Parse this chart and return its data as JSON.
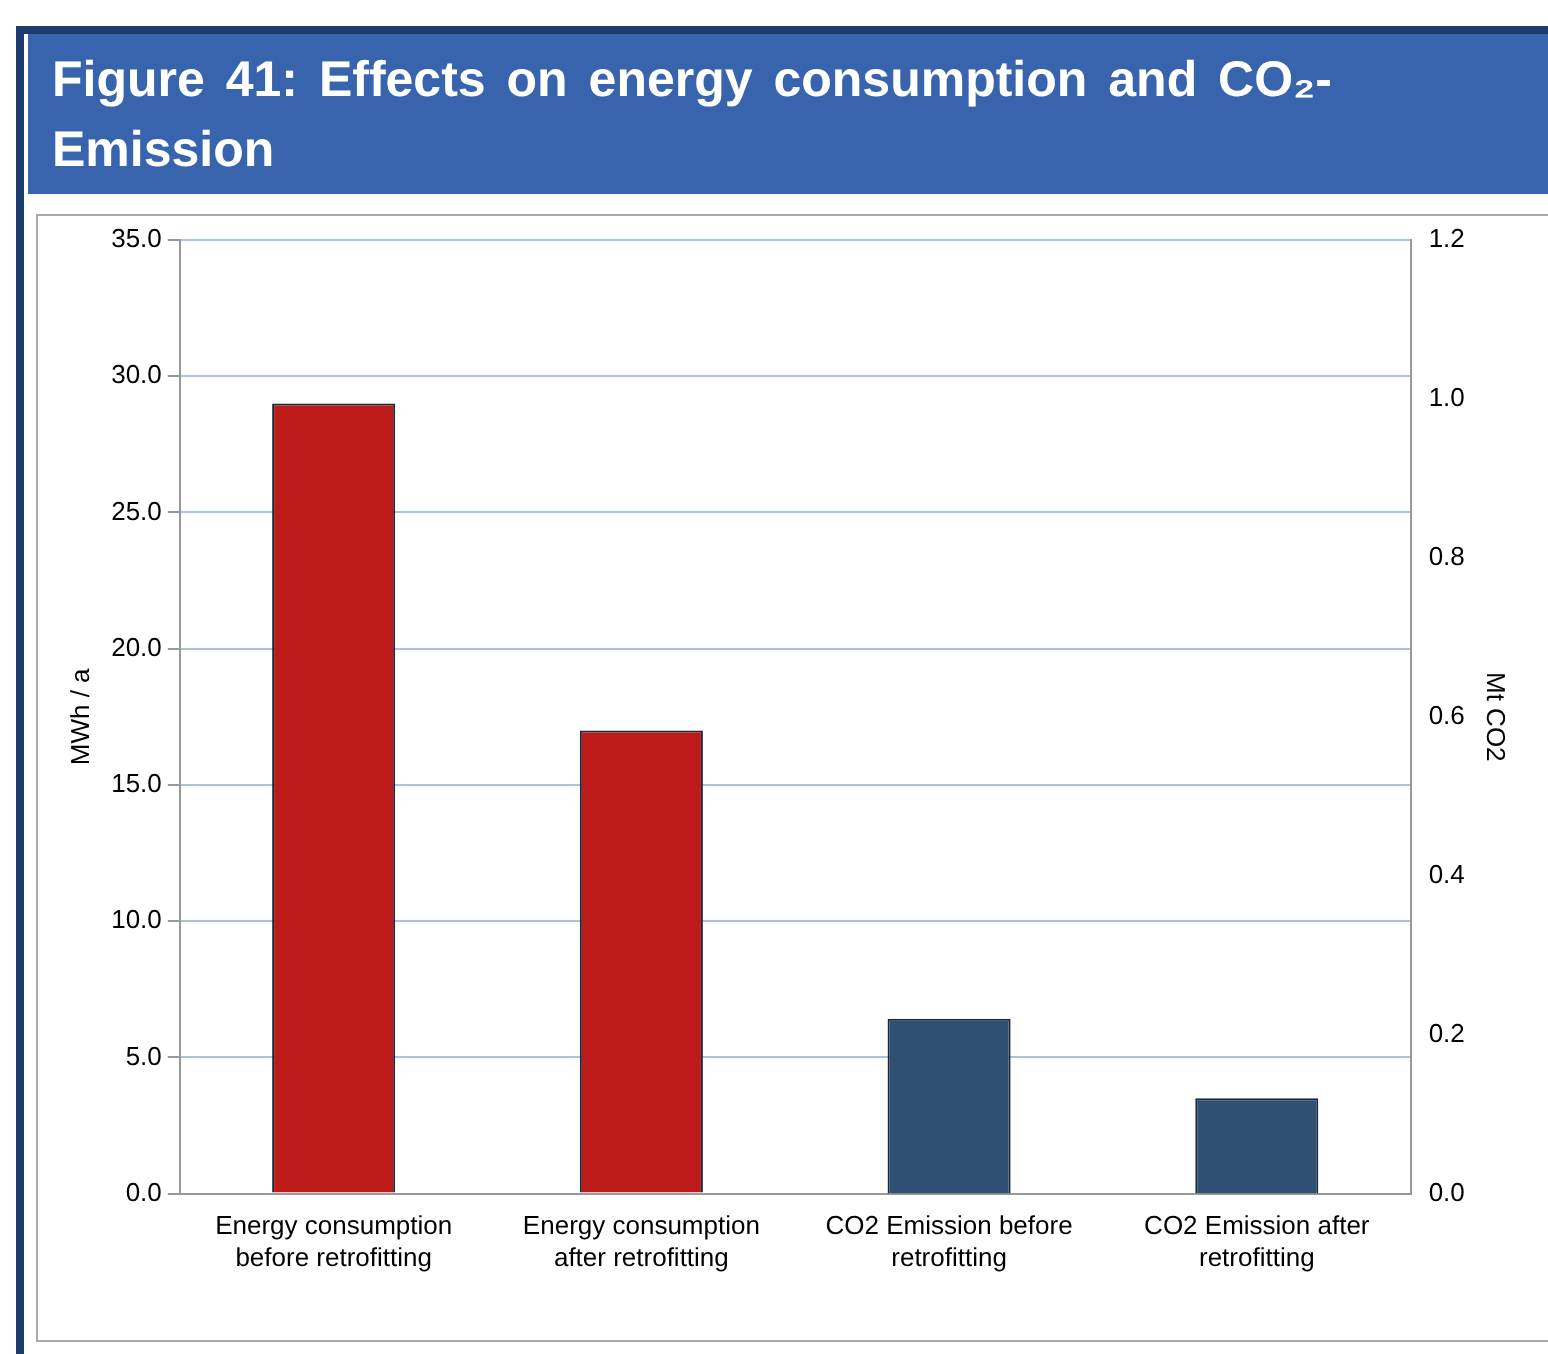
{
  "chart_data": {
    "type": "bar",
    "title": "Figure 41: Effects on energy consumption and CO₂-Emission",
    "ylabel": "MWh / a",
    "y2label": "Mt CO2",
    "categories": [
      "Energy consumption before retrofitting",
      "Energy consumption after retrofitting",
      "CO2 Emission before retrofitting",
      "CO2 Emission after retrofitting"
    ],
    "series": [
      {
        "color": "#bd1a1a",
        "values": [
          29.0,
          17.0,
          null,
          null
        ]
      },
      {
        "color": "#2f5072",
        "axis": "y2",
        "values": [
          null,
          null,
          0.22,
          0.12
        ]
      }
    ],
    "ylim": [
      0,
      35
    ],
    "yticks": [
      {
        "value": 0,
        "label": "0.0"
      },
      {
        "value": 5,
        "label": "5.0"
      },
      {
        "value": 10,
        "label": "10.0"
      },
      {
        "value": 15,
        "label": "15.0"
      },
      {
        "value": 20,
        "label": "20.0"
      },
      {
        "value": 25,
        "label": "25.0"
      },
      {
        "value": 30,
        "label": "30.0"
      },
      {
        "value": 35,
        "label": "35.0"
      }
    ],
    "y2lim": [
      0,
      1.2
    ],
    "y2ticks": [
      {
        "value": 0,
        "label": "0.0"
      },
      {
        "value": 0.2,
        "label": "0.2"
      },
      {
        "value": 0.4,
        "label": "0.4"
      },
      {
        "value": 0.6,
        "label": "0.6"
      },
      {
        "value": 0.8,
        "label": "0.8"
      },
      {
        "value": 1.0,
        "label": "1.0"
      },
      {
        "value": 1.2,
        "label": "1.2"
      }
    ],
    "grid": "y",
    "legend": false
  }
}
